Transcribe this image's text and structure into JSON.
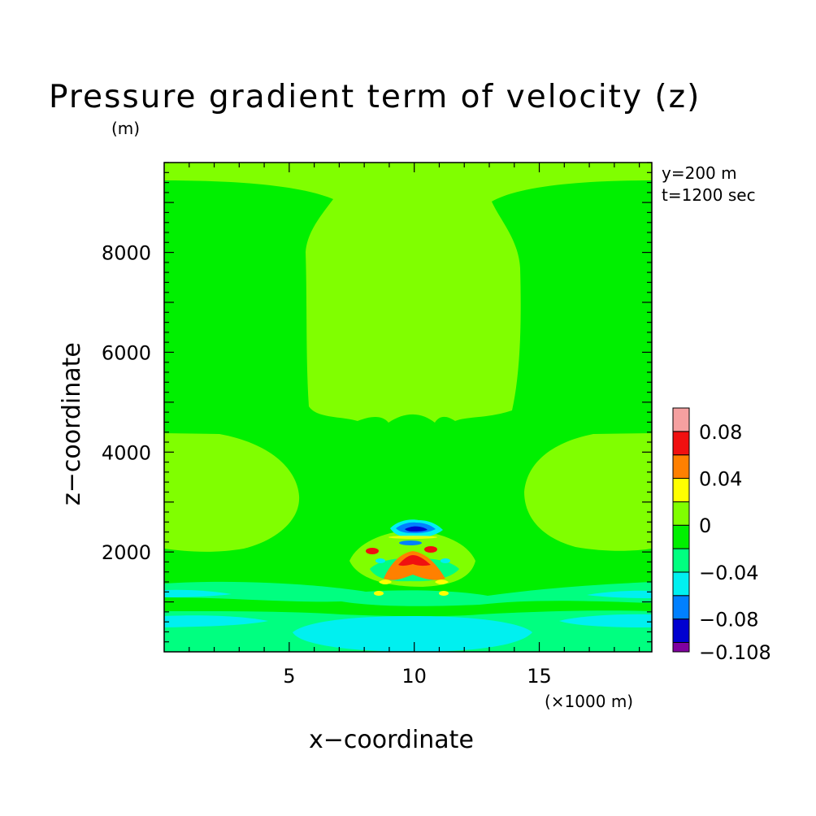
{
  "chart_data": {
    "type": "contour",
    "title": "Pressure gradient term of velocity (z)",
    "units_label": "(m)",
    "xlabel": "x−coordinate",
    "ylabel": "z−coordinate",
    "x_unit_label": "(×1000 m)",
    "annotations": [
      "y=200 m",
      "t=1200 sec"
    ],
    "xlim": [
      0,
      19.5
    ],
    "ylim": [
      0,
      9800
    ],
    "x_ticks": [
      5,
      10,
      15
    ],
    "x_tick_labels": [
      "5",
      "10",
      "15"
    ],
    "y_ticks": [
      2000,
      4000,
      6000,
      8000
    ],
    "y_tick_labels": [
      "2000",
      "4000",
      "6000",
      "8000"
    ],
    "colorbar": {
      "levels": [
        -0.108,
        -0.1,
        -0.08,
        -0.06,
        -0.04,
        -0.02,
        0,
        0.02,
        0.04,
        0.06,
        0.08,
        0.1
      ],
      "labels": [
        "0.08",
        "0.04",
        "0",
        "−0.04",
        "−0.08",
        "−0.108"
      ],
      "colors": [
        "#f5a0a0",
        "#f01010",
        "#ff8000",
        "#ffff00",
        "#80ff00",
        "#00f000",
        "#00ff80",
        "#00f0f0",
        "#0080ff",
        "#0000d0",
        "#8000a0"
      ]
    },
    "regions": [
      {
        "level": "0 to 0.02",
        "description": "upper central column",
        "x": [
          5.7,
          14.2
        ],
        "z": [
          4750,
          9400
        ]
      },
      {
        "level": "0 to 0.02",
        "description": "left mid lobe",
        "x": [
          0,
          5.3
        ],
        "z": [
          2150,
          4500
        ]
      },
      {
        "level": "0 to 0.02",
        "description": "right mid lobe",
        "x": [
          14.7,
          19.5
        ],
        "z": [
          2150,
          4500
        ]
      },
      {
        "level": "-0.02 to 0",
        "description": "lower band",
        "x": [
          0,
          19.5
        ],
        "z": [
          0,
          1400
        ]
      },
      {
        "level": "-0.04 to -0.02",
        "description": "bottom central pool",
        "x": [
          5.2,
          14.7
        ],
        "z": [
          0,
          700
        ]
      },
      {
        "level": "0.04 to 0.08",
        "description": "central peak",
        "x": [
          8.8,
          11.4
        ],
        "z": [
          1450,
          2000
        ]
      },
      {
        "level": "-0.1 to -0.06",
        "description": "negative core above peak",
        "x": [
          9.4,
          10.8
        ],
        "z": [
          2450,
          2650
        ]
      }
    ]
  }
}
